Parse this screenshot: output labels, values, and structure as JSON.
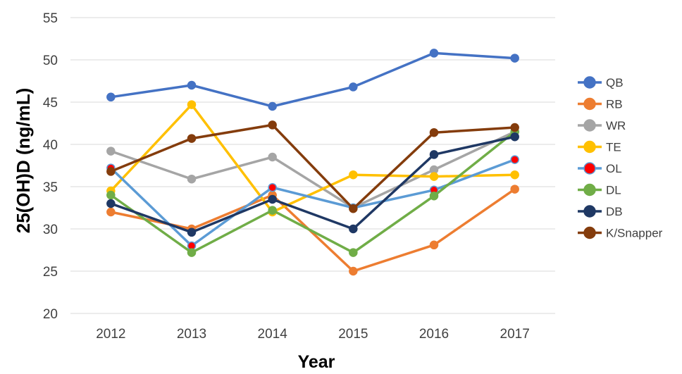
{
  "chart_data": {
    "type": "line",
    "xlabel": "Year",
    "ylabel": "25(OH)D (ng/mL)",
    "x": [
      "2012",
      "2013",
      "2014",
      "2015",
      "2016",
      "2017"
    ],
    "ylim": [
      20,
      55
    ],
    "yticks": [
      "20",
      "25",
      "30",
      "35",
      "40",
      "45",
      "50",
      "55"
    ],
    "grid": "horizontal",
    "legend_position": "right",
    "series": [
      {
        "name": "QB",
        "color": "#4472C4",
        "values": [
          45.6,
          47.0,
          44.5,
          46.8,
          50.8,
          50.2
        ]
      },
      {
        "name": "RB",
        "color": "#ED7D31",
        "values": [
          32.0,
          30.0,
          34.0,
          25.0,
          28.1,
          34.7
        ]
      },
      {
        "name": "WR",
        "color": "#A5A5A5",
        "values": [
          39.2,
          35.9,
          38.5,
          32.5,
          37.0,
          41.5
        ]
      },
      {
        "name": "TE",
        "color": "#FFC000",
        "values": [
          34.5,
          44.7,
          32.0,
          36.4,
          36.2,
          36.4
        ]
      },
      {
        "name": "OL",
        "color": "#5B9BD5",
        "marker": "#FF0000",
        "values": [
          37.2,
          28.0,
          34.9,
          32.5,
          34.6,
          38.2
        ]
      },
      {
        "name": "DL",
        "color": "#70AD47",
        "values": [
          34.0,
          27.2,
          32.2,
          27.2,
          33.9,
          41.5
        ]
      },
      {
        "name": "DB",
        "color": "#1F3864",
        "values": [
          33.0,
          29.6,
          33.5,
          30.0,
          38.8,
          40.9
        ]
      },
      {
        "name": "K/Snapper",
        "color": "#843C0C",
        "values": [
          36.8,
          40.7,
          42.3,
          32.4,
          41.4,
          42.0
        ]
      }
    ]
  }
}
